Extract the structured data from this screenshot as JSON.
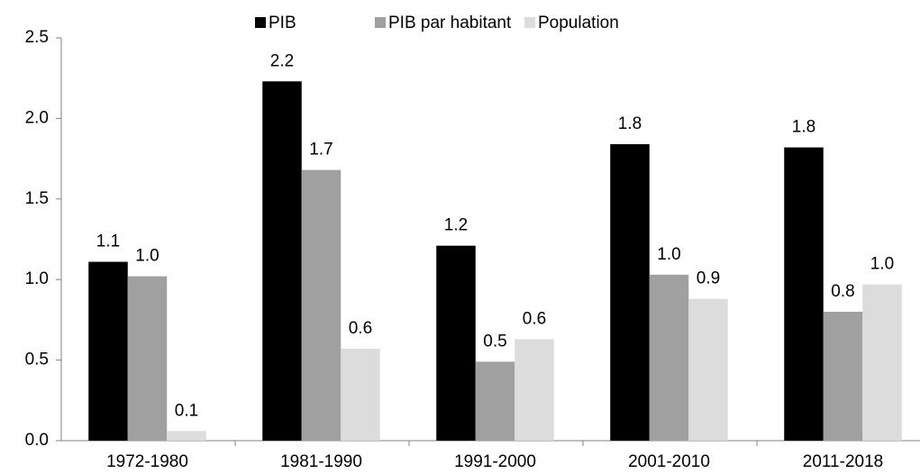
{
  "chart_data": {
    "type": "bar",
    "categories": [
      "1972-1980",
      "1981-1990",
      "1991-2000",
      "2001-2010",
      "2011-2018"
    ],
    "series": [
      {
        "name": "PIB",
        "color": "#000000",
        "values": [
          1.11,
          2.23,
          1.21,
          1.84,
          1.82
        ],
        "value_labels": [
          "1.1",
          "2.2",
          "1.2",
          "1.8",
          "1.8"
        ]
      },
      {
        "name": "PIB par habitant",
        "color": "#a0a0a0",
        "values": [
          1.02,
          1.68,
          0.49,
          1.03,
          0.8
        ],
        "value_labels": [
          "1.0",
          "1.7",
          "0.5",
          "1.0",
          "0.8"
        ]
      },
      {
        "name": "Population",
        "color": "#dcdcdc",
        "values": [
          0.06,
          0.57,
          0.63,
          0.88,
          0.97
        ],
        "value_labels": [
          "0.1",
          "0.6",
          "0.6",
          "0.9",
          "1.0"
        ]
      }
    ],
    "ylim": [
      0,
      2.5
    ],
    "yticks": [
      {
        "value": 0,
        "label": "0.0"
      },
      0.5,
      {
        "value": 1,
        "label": "1.0"
      },
      1.5,
      {
        "value": 2,
        "label": "2.0"
      },
      2.5
    ],
    "legend": "top",
    "grid": false
  }
}
